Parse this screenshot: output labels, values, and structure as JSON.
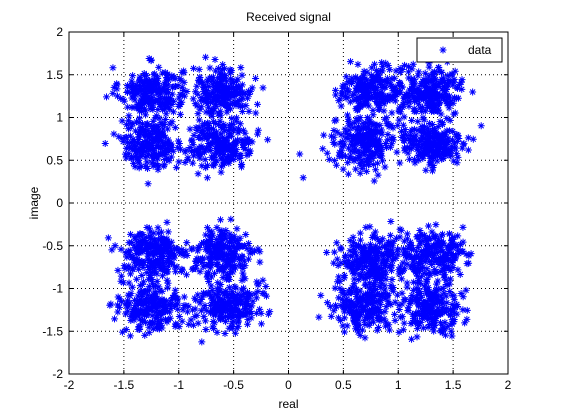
{
  "chart_data": {
    "type": "scatter",
    "title": "Received signal",
    "xlabel": "real",
    "ylabel": "image",
    "xlim": [
      -2,
      2
    ],
    "ylim": [
      -2,
      2
    ],
    "xticks": [
      -2,
      -1.5,
      -1,
      -0.5,
      0,
      0.5,
      1,
      1.5,
      2
    ],
    "yticks": [
      -2,
      -1.5,
      -1,
      -0.5,
      0,
      0.5,
      1,
      1.5,
      2
    ],
    "xtick_labels": [
      "-2",
      "-1.5",
      "-1",
      "-0.5",
      "0",
      "0.5",
      "1",
      "1.5",
      "2"
    ],
    "ytick_labels": [
      "-2",
      "-1.5",
      "-1",
      "-0.5",
      "0",
      "0.5",
      "1",
      "1.5",
      "2"
    ],
    "grid": true,
    "grid_style": "dotted",
    "legend": {
      "placement": "top-right",
      "entries": [
        "data"
      ]
    },
    "marker": "asterisk",
    "color": "#0000ff",
    "series": [
      {
        "name": "data",
        "clusters": [
          {
            "center": [
              -1.25,
              1.3
            ],
            "points": 230
          },
          {
            "center": [
              -0.6,
              1.3
            ],
            "points": 230
          },
          {
            "center": [
              -1.25,
              0.7
            ],
            "points": 230
          },
          {
            "center": [
              -0.6,
              0.7
            ],
            "points": 230
          },
          {
            "center": [
              0.75,
              1.3
            ],
            "points": 230
          },
          {
            "center": [
              1.3,
              1.3
            ],
            "points": 230
          },
          {
            "center": [
              0.7,
              0.7
            ],
            "points": 230
          },
          {
            "center": [
              1.3,
              0.7
            ],
            "points": 230
          },
          {
            "center": [
              -1.25,
              -0.6
            ],
            "points": 230
          },
          {
            "center": [
              -0.6,
              -0.6
            ],
            "points": 230
          },
          {
            "center": [
              -1.25,
              -1.2
            ],
            "points": 230
          },
          {
            "center": [
              -0.55,
              -1.2
            ],
            "points": 230
          },
          {
            "center": [
              0.75,
              -0.65
            ],
            "points": 230
          },
          {
            "center": [
              1.3,
              -0.6
            ],
            "points": 230
          },
          {
            "center": [
              0.7,
              -1.2
            ],
            "points": 230
          },
          {
            "center": [
              1.3,
              -1.2
            ],
            "points": 230
          }
        ],
        "spread": 0.17
      }
    ]
  }
}
